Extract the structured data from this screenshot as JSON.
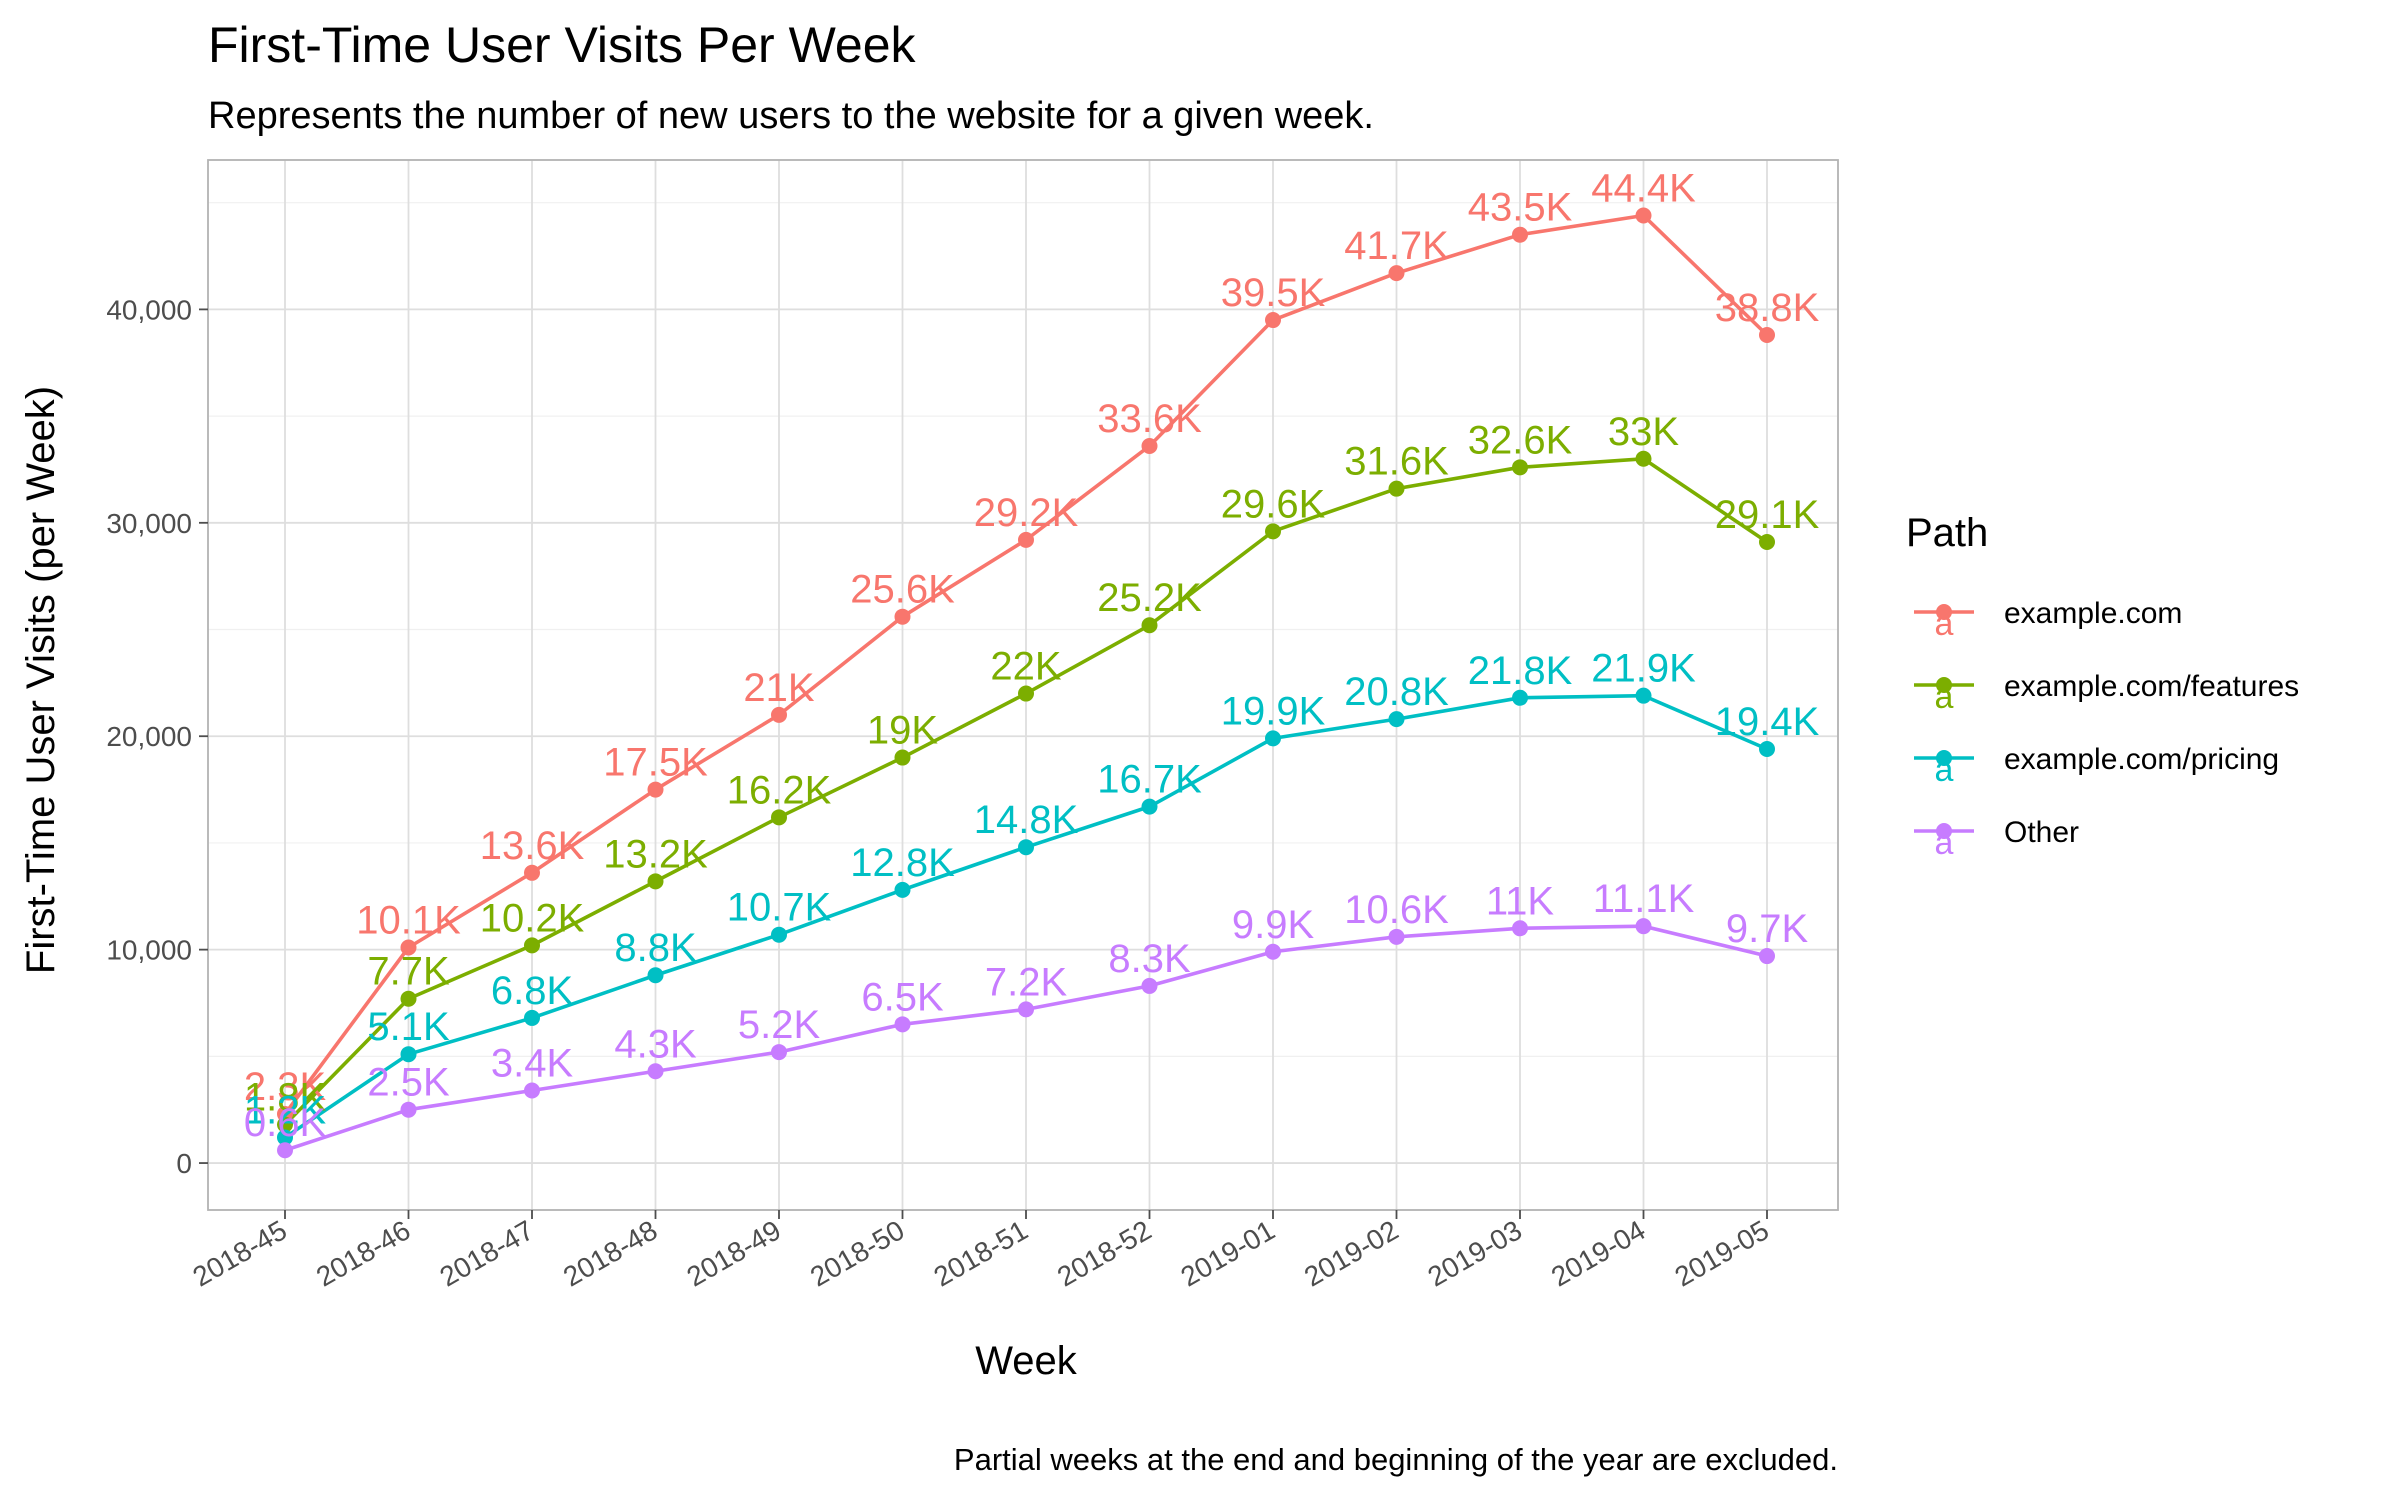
{
  "chart_data": {
    "type": "line",
    "title": "First-Time User Visits Per Week",
    "subtitle": "Represents the number of new users to the website for a given week.",
    "xlabel": "Week",
    "ylabel": "First-Time User Visits (per Week)",
    "caption": "Partial weeks at the end and beginning of the year are excluded.",
    "categories": [
      "2018-45",
      "2018-46",
      "2018-47",
      "2018-48",
      "2018-49",
      "2018-50",
      "2018-51",
      "2018-52",
      "2019-01",
      "2019-02",
      "2019-03",
      "2019-04",
      "2019-05"
    ],
    "ylim": [
      -2200,
      47000
    ],
    "y_ticks": [
      0,
      10000,
      20000,
      30000,
      40000
    ],
    "y_tick_labels": [
      "0",
      "10,000",
      "20,000",
      "30,000",
      "40,000"
    ],
    "grid": true,
    "legend": {
      "title": "Path",
      "position": "right",
      "key_glyph": "a"
    },
    "series": [
      {
        "name": "example.com",
        "color": "#F8766D",
        "values": [
          2300,
          10100,
          13600,
          17500,
          21000,
          25600,
          29200,
          33600,
          39500,
          41700,
          43500,
          44400,
          38800
        ],
        "labels": [
          "2.3K",
          "10.1K",
          "13.6K",
          "17.5K",
          "21K",
          "25.6K",
          "29.2K",
          "33.6K",
          "39.5K",
          "41.7K",
          "43.5K",
          "44.4K",
          "38.8K"
        ]
      },
      {
        "name": "example.com/features",
        "color": "#7CAE00",
        "values": [
          1800,
          7700,
          10200,
          13200,
          16200,
          19000,
          22000,
          25200,
          29600,
          31600,
          32600,
          33000,
          29100
        ],
        "labels": [
          "1.8K",
          "7.7K",
          "10.2K",
          "13.2K",
          "16.2K",
          "19K",
          "22K",
          "25.2K",
          "29.6K",
          "31.6K",
          "32.6K",
          "33K",
          "29.1K"
        ]
      },
      {
        "name": "example.com/pricing",
        "color": "#00BFC4",
        "values": [
          1200,
          5100,
          6800,
          8800,
          10700,
          12800,
          14800,
          16700,
          19900,
          20800,
          21800,
          21900,
          19400
        ],
        "labels": [
          "1.2K",
          "5.1K",
          "6.8K",
          "8.8K",
          "10.7K",
          "12.8K",
          "14.8K",
          "16.7K",
          "19.9K",
          "20.8K",
          "21.8K",
          "21.9K",
          "19.4K"
        ]
      },
      {
        "name": "Other",
        "color": "#C77CFF",
        "values": [
          600,
          2500,
          3400,
          4300,
          5200,
          6500,
          7200,
          8300,
          9900,
          10600,
          11000,
          11100,
          9700
        ],
        "labels": [
          "0.6K",
          "2.5K",
          "3.4K",
          "4.3K",
          "5.2K",
          "6.5K",
          "7.2K",
          "8.3K",
          "9.9K",
          "10.6K",
          "11K",
          "11.1K",
          "9.7K"
        ]
      }
    ]
  }
}
